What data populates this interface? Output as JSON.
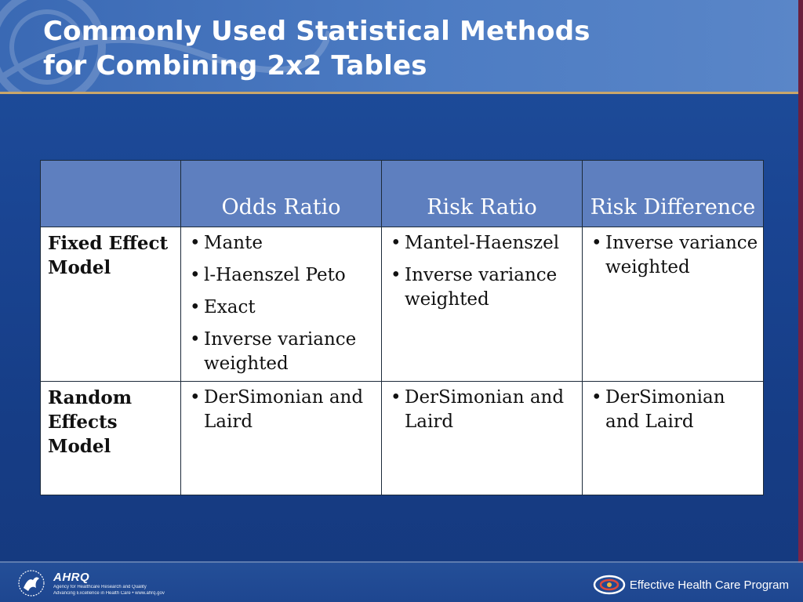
{
  "slide": {
    "title_line1": "Commonly Used Statistical Methods",
    "title_line2": "for Combining 2x2 Tables"
  },
  "table": {
    "headers": [
      "",
      "Odds Ratio",
      "Risk Ratio",
      "Risk Difference"
    ],
    "rows": [
      {
        "label": "Fixed Effect Model",
        "cells": [
          [
            "Mante",
            "l-Haenszel Peto",
            "Exact",
            "Inverse variance weighted"
          ],
          [
            "Mantel-Haenszel",
            "Inverse variance weighted"
          ],
          [
            "Inverse variance weighted"
          ]
        ]
      },
      {
        "label": "Random Effects Model",
        "cells": [
          [
            "DerSimonian and Laird"
          ],
          [
            "DerSimonian and Laird"
          ],
          [
            "DerSimonian and Laird"
          ]
        ]
      }
    ]
  },
  "footer": {
    "ahrq_mark": "AHRQ",
    "ahrq_line1": "Agency for Healthcare Research and Quality",
    "ahrq_line2": "Advancing Excellence in Health Care • www.ahrq.gov",
    "program_name": "Effective Health Care Program"
  },
  "colors": {
    "background": "#1a4593",
    "header_band": "#4d7cc3",
    "table_header": "#5e7fbf",
    "accent_rule": "#c9a66b"
  }
}
